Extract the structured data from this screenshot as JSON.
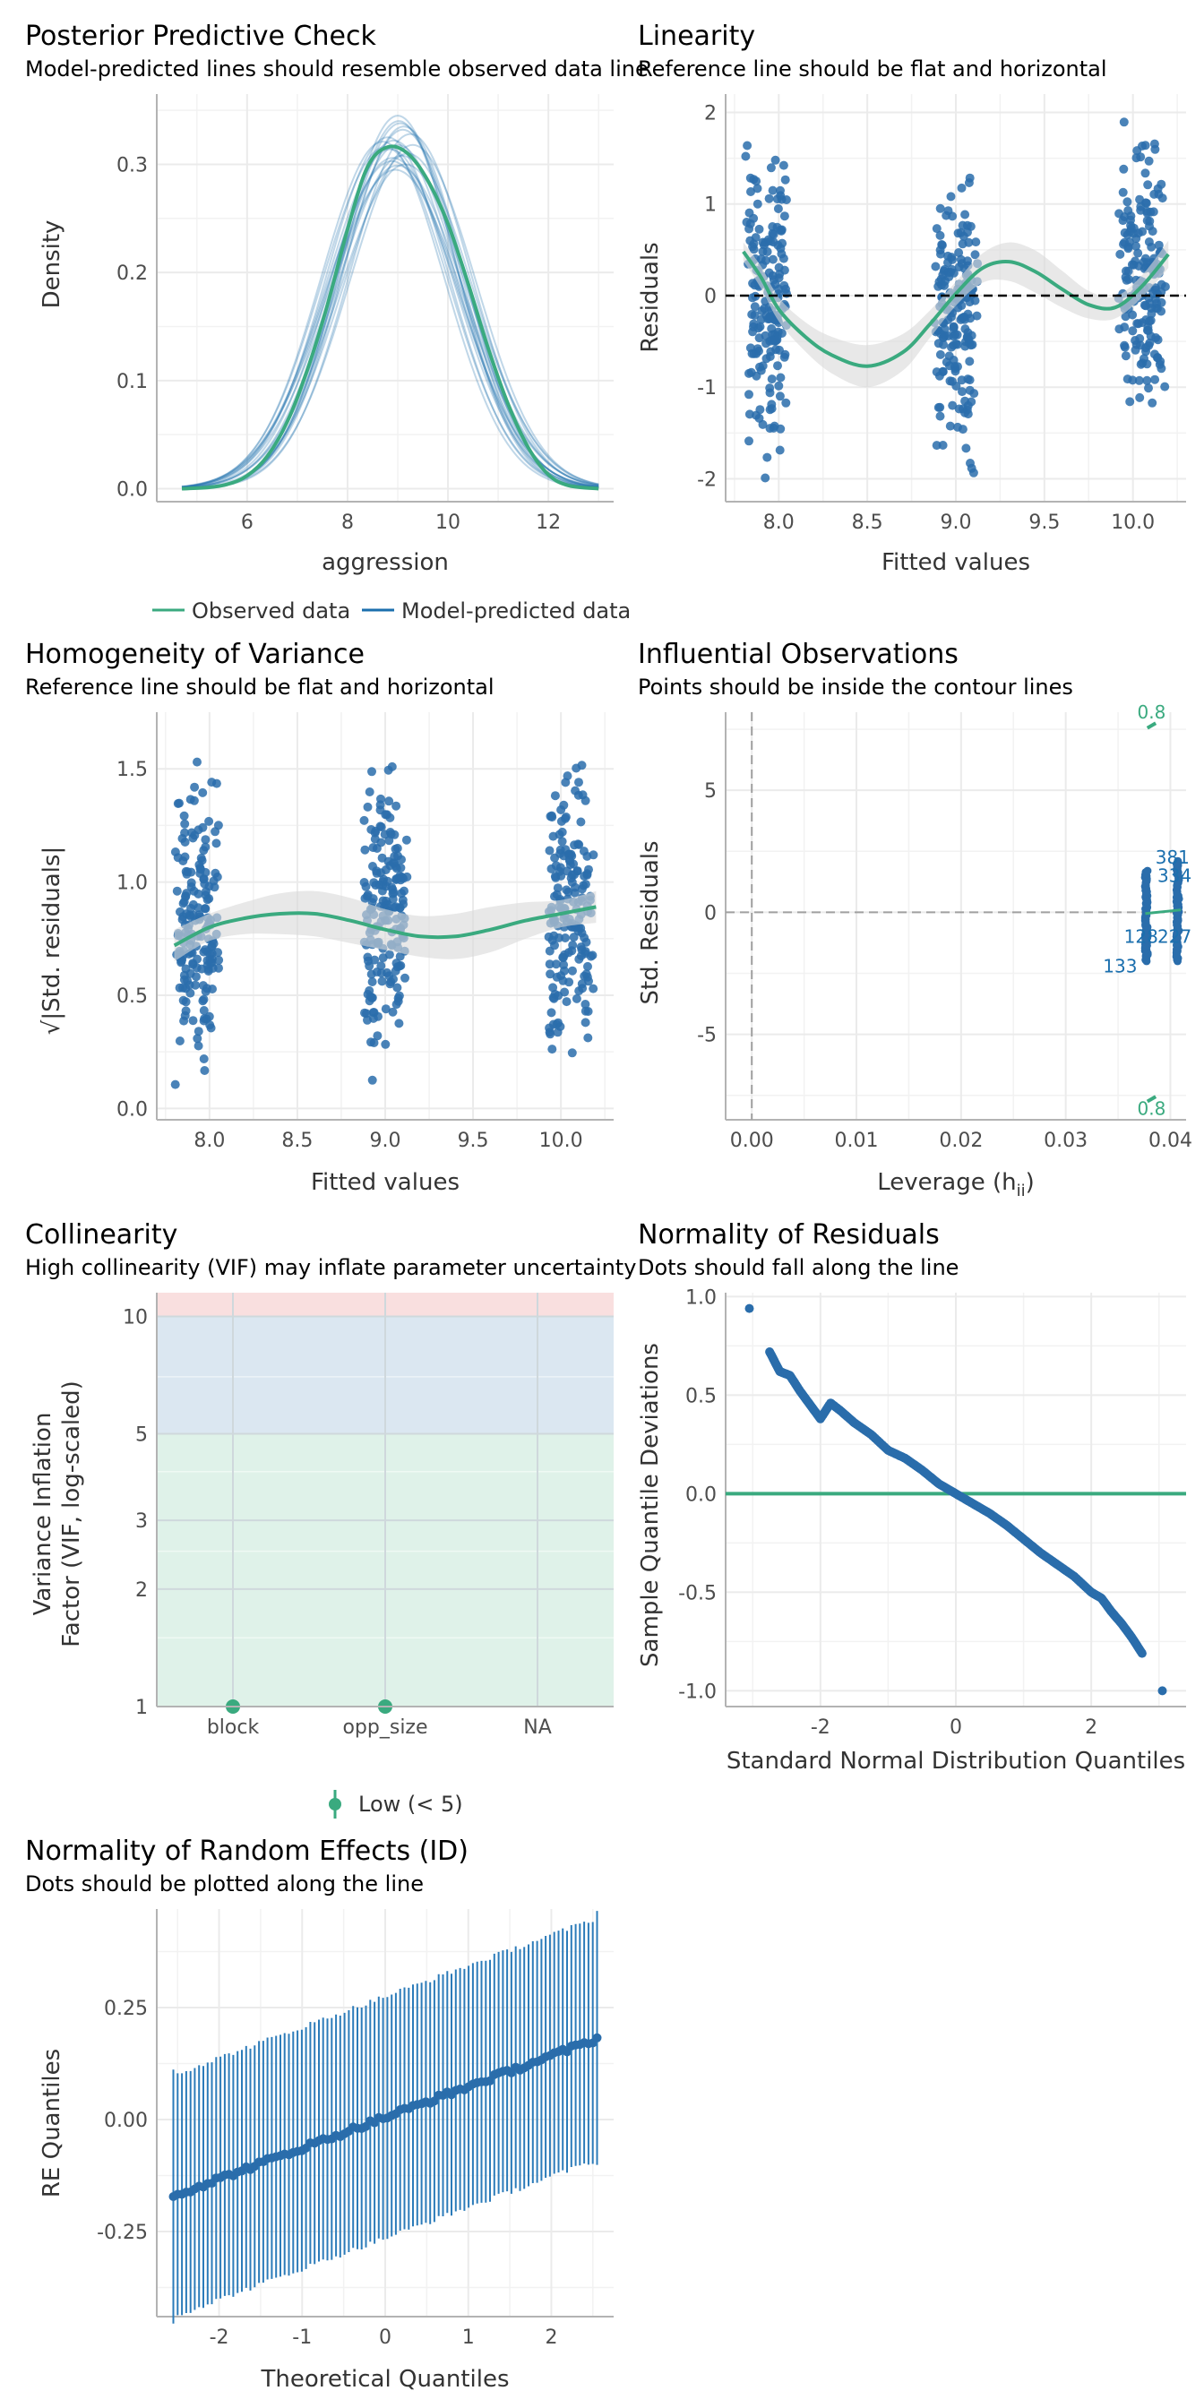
{
  "colors": {
    "observed": "#3aaa7f",
    "predicted": "#1b6fae",
    "points": "#2a6dab",
    "grid": "#ebebeb",
    "ref": "#000000",
    "band": "#d9d9d9",
    "low_zone": "#dff2e9",
    "mid_zone": "#dbe7f1",
    "high_zone": "#f9dfdf"
  },
  "chart_data": [
    {
      "id": "ppc",
      "type": "line",
      "title": "Posterior Predictive Check",
      "subtitle": "Model-predicted lines should resemble observed data line",
      "xlabel": "aggression",
      "ylabel": "Density",
      "xlim": [
        4.2,
        13.3
      ],
      "ylim": [
        -0.012,
        0.365
      ],
      "xticks": [
        6,
        8,
        10,
        12
      ],
      "xtick_labels": [
        "6",
        "8",
        "10",
        "12"
      ],
      "yticks": [
        0.0,
        0.1,
        0.2,
        0.3
      ],
      "ytick_labels": [
        "0.0",
        "0.1",
        "0.2",
        "0.3"
      ],
      "legend": {
        "position": "bottom",
        "entries": [
          "Observed data",
          "Model-predicted data"
        ]
      },
      "observed_x": [
        4.7,
        5.2,
        5.6,
        6.0,
        6.4,
        6.8,
        7.2,
        7.6,
        8.0,
        8.4,
        8.8,
        9.2,
        9.6,
        10.0,
        10.4,
        10.8,
        11.2,
        11.6,
        12.0,
        12.4,
        13.0
      ],
      "observed_y": [
        0.0,
        0.001,
        0.004,
        0.012,
        0.03,
        0.062,
        0.11,
        0.17,
        0.24,
        0.298,
        0.316,
        0.31,
        0.285,
        0.245,
        0.19,
        0.13,
        0.078,
        0.038,
        0.013,
        0.003,
        0.0
      ],
      "predicted_draws": [
        {
          "mean": 9.0,
          "sd": 1.25,
          "peak": 0.318
        },
        {
          "mean": 8.9,
          "sd": 1.3,
          "peak": 0.306
        },
        {
          "mean": 9.1,
          "sd": 1.2,
          "peak": 0.332
        },
        {
          "mean": 8.8,
          "sd": 1.22,
          "peak": 0.325
        },
        {
          "mean": 9.2,
          "sd": 1.28,
          "peak": 0.31
        },
        {
          "mean": 8.95,
          "sd": 1.35,
          "peak": 0.295
        },
        {
          "mean": 9.05,
          "sd": 1.18,
          "peak": 0.338
        },
        {
          "mean": 8.85,
          "sd": 1.27,
          "peak": 0.314
        },
        {
          "mean": 9.15,
          "sd": 1.32,
          "peak": 0.3
        },
        {
          "mean": 9.0,
          "sd": 1.15,
          "peak": 0.345
        },
        {
          "mean": 8.92,
          "sd": 1.24,
          "peak": 0.322
        },
        {
          "mean": 9.08,
          "sd": 1.29,
          "peak": 0.308
        },
        {
          "mean": 9.25,
          "sd": 1.21,
          "peak": 0.328
        },
        {
          "mean": 8.75,
          "sd": 1.26,
          "peak": 0.316
        },
        {
          "mean": 9.0,
          "sd": 1.33,
          "peak": 0.299
        },
        {
          "mean": 9.12,
          "sd": 1.19,
          "peak": 0.335
        },
        {
          "mean": 8.88,
          "sd": 1.31,
          "peak": 0.303
        },
        {
          "mean": 9.3,
          "sd": 1.25,
          "peak": 0.318
        },
        {
          "mean": 8.7,
          "sd": 1.23,
          "peak": 0.321
        },
        {
          "mean": 9.02,
          "sd": 1.16,
          "peak": 0.34
        }
      ]
    },
    {
      "id": "linearity",
      "type": "scatter",
      "title": "Linearity",
      "subtitle": "Reference line should be flat and horizontal",
      "xlabel": "Fitted values",
      "ylabel": "Residuals",
      "xlim": [
        7.7,
        10.3
      ],
      "ylim": [
        -2.25,
        2.2
      ],
      "xticks": [
        8.0,
        8.5,
        9.0,
        9.5,
        10.0
      ],
      "xtick_labels": [
        "8.0",
        "8.5",
        "9.0",
        "9.5",
        "10.0"
      ],
      "yticks": [
        -2,
        -1,
        0,
        1,
        2
      ],
      "ytick_labels": [
        "-2",
        "-1",
        "0",
        "1",
        "2"
      ],
      "reference_y": 0,
      "clusters": [
        {
          "x_center": 7.93,
          "x_spread": 0.13,
          "y_min": -2.0,
          "y_max": 1.95,
          "n": 180
        },
        {
          "x_center": 9.0,
          "x_spread": 0.13,
          "y_min": -2.12,
          "y_max": 1.7,
          "n": 180
        },
        {
          "x_center": 10.05,
          "x_spread": 0.14,
          "y_min": -1.85,
          "y_max": 2.08,
          "n": 180
        }
      ],
      "smooth_x": [
        7.8,
        7.9,
        8.0,
        8.15,
        8.3,
        8.5,
        8.7,
        8.85,
        9.0,
        9.15,
        9.3,
        9.45,
        9.6,
        9.75,
        9.9,
        10.05,
        10.2
      ],
      "smooth_y": [
        0.48,
        0.2,
        -0.15,
        -0.45,
        -0.65,
        -0.77,
        -0.62,
        -0.32,
        0.02,
        0.3,
        0.37,
        0.26,
        0.07,
        -0.1,
        -0.13,
        0.1,
        0.45
      ],
      "band_halfwidth": [
        0.1,
        0.12,
        0.13,
        0.16,
        0.2,
        0.23,
        0.2,
        0.15,
        0.13,
        0.16,
        0.21,
        0.23,
        0.2,
        0.15,
        0.12,
        0.12,
        0.15
      ]
    },
    {
      "id": "homogeneity",
      "type": "scatter",
      "title": "Homogeneity of Variance",
      "subtitle": "Reference line should be flat and horizontal",
      "xlabel": "Fitted values",
      "ylabel": "√|Std. residuals|",
      "xlim": [
        7.7,
        10.3
      ],
      "ylim": [
        -0.05,
        1.75
      ],
      "xticks": [
        8.0,
        8.5,
        9.0,
        9.5,
        10.0
      ],
      "xtick_labels": [
        "8.0",
        "8.5",
        "9.0",
        "9.5",
        "10.0"
      ],
      "yticks": [
        0.0,
        0.5,
        1.0,
        1.5
      ],
      "ytick_labels": [
        "0.0",
        "0.5",
        "1.0",
        "1.5"
      ],
      "clusters": [
        {
          "x_center": 7.93,
          "x_spread": 0.13,
          "y_min": 0.02,
          "y_max": 1.62,
          "n": 180
        },
        {
          "x_center": 9.0,
          "x_spread": 0.13,
          "y_min": 0.03,
          "y_max": 1.68,
          "n": 180
        },
        {
          "x_center": 10.05,
          "x_spread": 0.14,
          "y_min": 0.07,
          "y_max": 1.64,
          "n": 180
        }
      ],
      "smooth_x": [
        7.8,
        8.0,
        8.2,
        8.4,
        8.6,
        8.8,
        9.0,
        9.2,
        9.4,
        9.6,
        9.8,
        10.0,
        10.2
      ],
      "smooth_y": [
        0.72,
        0.8,
        0.84,
        0.86,
        0.86,
        0.83,
        0.79,
        0.76,
        0.76,
        0.79,
        0.83,
        0.86,
        0.89
      ],
      "band_halfwidth": [
        0.07,
        0.06,
        0.07,
        0.09,
        0.1,
        0.1,
        0.09,
        0.09,
        0.1,
        0.1,
        0.08,
        0.06,
        0.07
      ]
    },
    {
      "id": "influential",
      "type": "scatter",
      "title": "Influential Observations",
      "subtitle": "Points should be inside the contour lines",
      "xlabel": "Leverage (h",
      "xlabel_sub": "ii",
      "xlabel_suffix": ")",
      "ylabel": "Std. Residuals",
      "xlim": [
        -0.0025,
        0.0415
      ],
      "ylim": [
        -8.5,
        8.2
      ],
      "xticks": [
        0.0,
        0.01,
        0.02,
        0.03,
        0.04
      ],
      "xtick_labels": [
        "0.00",
        "0.01",
        "0.02",
        "0.03",
        "0.04"
      ],
      "yticks": [
        -5,
        0,
        5
      ],
      "ytick_labels": [
        "-5",
        "0",
        "5"
      ],
      "contour_label_top": "0.8",
      "contour_label_bottom": "0.8",
      "point_columns": [
        {
          "leverage": 0.0377,
          "y_min": -2.0,
          "y_max": 1.7
        },
        {
          "leverage": 0.0407,
          "y_min": -2.0,
          "y_max": 2.1
        }
      ],
      "labeled_points": [
        {
          "label": "381",
          "leverage": 0.0402,
          "resid": 2.25
        },
        {
          "label": "334",
          "leverage": 0.0404,
          "resid": 1.5
        },
        {
          "label": "128",
          "leverage": 0.0372,
          "resid": -1.0
        },
        {
          "label": "227",
          "leverage": 0.0404,
          "resid": -1.0
        },
        {
          "label": "133",
          "leverage": 0.0352,
          "resid": -2.2
        }
      ]
    },
    {
      "id": "collinearity",
      "type": "scatter",
      "title": "Collinearity",
      "subtitle": "High collinearity (VIF) may inflate parameter uncertainty",
      "xlabel": "",
      "ylabel": [
        "Variance Inflation",
        "Factor (VIF, log-scaled)"
      ],
      "scale": "log",
      "ylim": [
        1,
        11.5
      ],
      "categories": [
        "block",
        "opp_size",
        "NA"
      ],
      "values": [
        1.0,
        1.0,
        null
      ],
      "yticks": [
        1,
        2,
        3,
        5,
        10
      ],
      "ytick_labels": [
        "1",
        "2",
        "3",
        "5",
        "10"
      ],
      "zones": [
        {
          "from": 1,
          "to": 5
        },
        {
          "from": 5,
          "to": 10
        },
        {
          "from": 10,
          "to": 11.5
        }
      ],
      "legend": {
        "position": "bottom",
        "entries": [
          "Low (< 5)"
        ]
      }
    },
    {
      "id": "normality",
      "type": "scatter",
      "title": "Normality of Residuals",
      "subtitle": "Dots should fall along the line",
      "xlabel": "Standard Normal Distribution Quantiles",
      "ylabel": "Sample Quantile Deviations",
      "xlim": [
        -3.4,
        3.4
      ],
      "ylim": [
        -1.08,
        1.02
      ],
      "xticks": [
        -2,
        0,
        2
      ],
      "xtick_labels": [
        "-2",
        "0",
        "2"
      ],
      "yticks": [
        -1.0,
        -0.5,
        0.0,
        0.5,
        1.0
      ],
      "ytick_labels": [
        "-1.0",
        "-0.5",
        "0.0",
        "0.5",
        "1.0"
      ],
      "reference_y": 0,
      "qq_x": [
        -3.05,
        -2.75,
        -2.6,
        -2.45,
        -2.3,
        -2.15,
        -2.0,
        -1.85,
        -1.7,
        -1.5,
        -1.25,
        -1.0,
        -0.75,
        -0.5,
        -0.25,
        0.0,
        0.25,
        0.5,
        0.75,
        1.0,
        1.25,
        1.5,
        1.75,
        2.0,
        2.15,
        2.3,
        2.45,
        2.6,
        2.75,
        3.05
      ],
      "qq_y": [
        0.94,
        0.72,
        0.62,
        0.6,
        0.52,
        0.45,
        0.38,
        0.46,
        0.42,
        0.36,
        0.3,
        0.22,
        0.18,
        0.12,
        0.05,
        0.0,
        -0.05,
        -0.1,
        -0.16,
        -0.23,
        -0.3,
        -0.36,
        -0.42,
        -0.5,
        -0.53,
        -0.6,
        -0.66,
        -0.73,
        -0.81,
        -1.0
      ]
    },
    {
      "id": "re_normality",
      "type": "scatter",
      "title": "Normality of Random Effects (ID)",
      "subtitle": "Dots should be plotted along the line",
      "xlabel": "Theoretical Quantiles",
      "ylabel": "RE Quantiles",
      "xlim": [
        -2.75,
        2.75
      ],
      "ylim": [
        -0.44,
        0.47
      ],
      "xticks": [
        -2,
        -1,
        0,
        1,
        2
      ],
      "xtick_labels": [
        "-2",
        "-1",
        "0",
        "1",
        "2"
      ],
      "yticks": [
        -0.25,
        0.0,
        0.25
      ],
      "ytick_labels": [
        "-0.25",
        "0.00",
        "0.25"
      ],
      "n_groups": 100,
      "theoretical_range": [
        -2.55,
        2.55
      ],
      "fit_line": [
        [
          -2.55,
          -0.17
        ],
        [
          2.55,
          0.18
        ]
      ],
      "ci_halfwidth": 0.27
    }
  ]
}
